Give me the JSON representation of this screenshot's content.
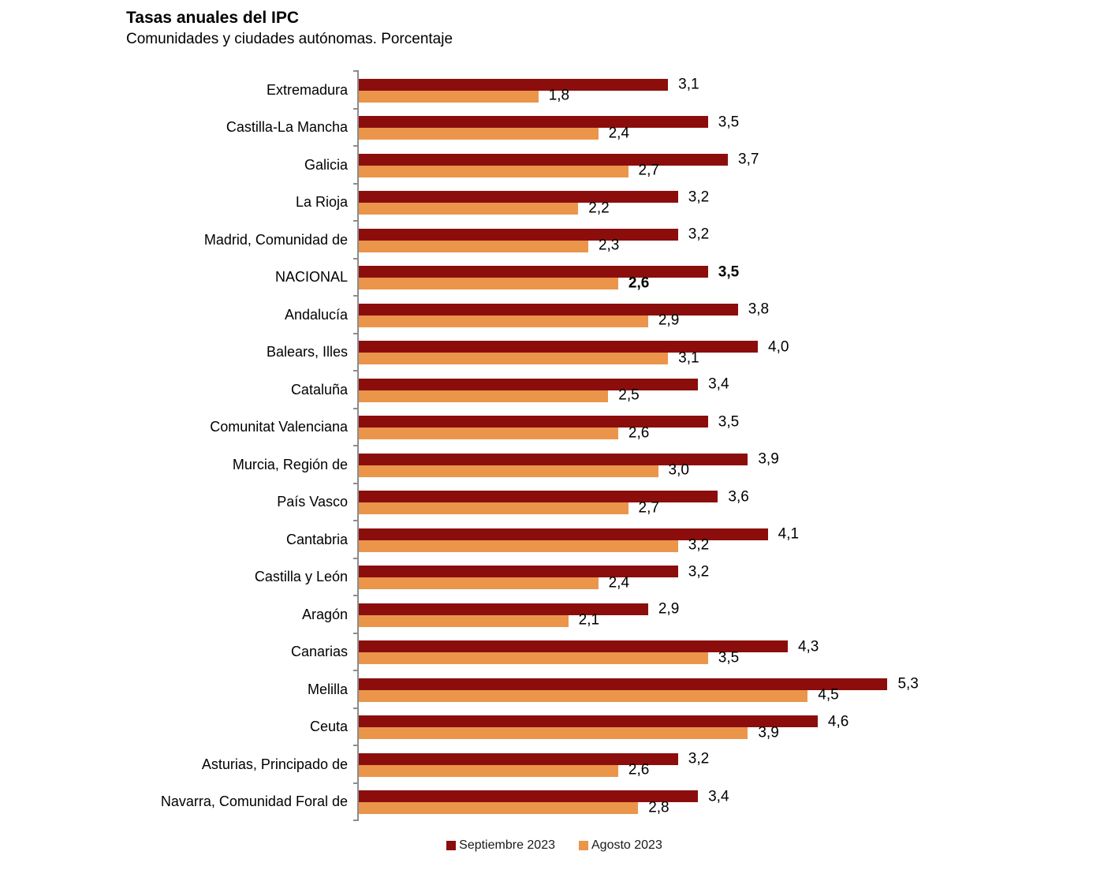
{
  "chart_data": {
    "type": "bar",
    "orientation": "horizontal",
    "title": "Tasas anuales del IPC",
    "subtitle": "Comunidades y ciudades autónomas. Porcentaje",
    "categories": [
      "Extremadura",
      "Castilla-La Mancha",
      "Galicia",
      "La Rioja",
      "Madrid, Comunidad de",
      "NACIONAL",
      "Andalucía",
      "Balears, Illes",
      "Cataluña",
      "Comunitat Valenciana",
      "Murcia, Región de",
      "País Vasco",
      "Cantabria",
      "Castilla y León",
      "Aragón",
      "Canarias",
      "Melilla",
      "Ceuta",
      "Asturias, Principado de",
      "Navarra, Comunidad Foral de"
    ],
    "series": [
      {
        "name": "Septiembre 2023",
        "color": "#8B0E0C",
        "values": [
          3.1,
          3.5,
          3.7,
          3.2,
          3.2,
          3.5,
          3.8,
          4.0,
          3.4,
          3.5,
          3.9,
          3.6,
          4.1,
          3.2,
          2.9,
          4.3,
          5.3,
          4.6,
          3.2,
          3.4
        ]
      },
      {
        "name": "Agosto 2023",
        "color": "#EB954B",
        "values": [
          1.8,
          2.4,
          2.7,
          2.2,
          2.3,
          2.6,
          2.9,
          3.1,
          2.5,
          2.6,
          3.0,
          2.7,
          3.2,
          2.4,
          2.1,
          3.5,
          4.5,
          3.9,
          2.6,
          2.8
        ]
      }
    ],
    "emphasized_category": "NACIONAL",
    "value_label_format": "one-decimal-comma",
    "xlim": [
      0,
      7.5
    ],
    "grid": false,
    "legend_position": "bottom"
  }
}
